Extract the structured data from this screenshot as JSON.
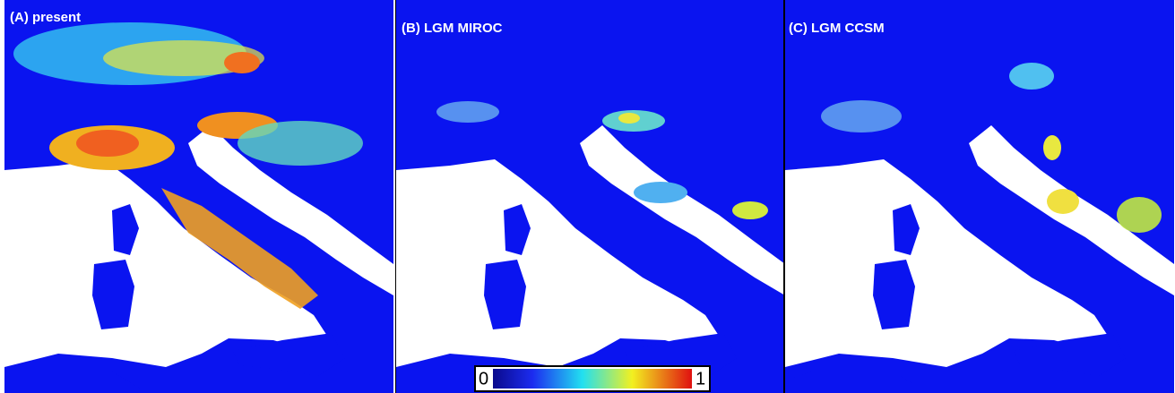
{
  "panels": [
    {
      "label": "(A) present"
    },
    {
      "label": "(B) LGM MIROC"
    },
    {
      "label": "(C) LGM CCSM"
    }
  ],
  "colorbar": {
    "min_label": "0",
    "max_label": "1"
  }
}
